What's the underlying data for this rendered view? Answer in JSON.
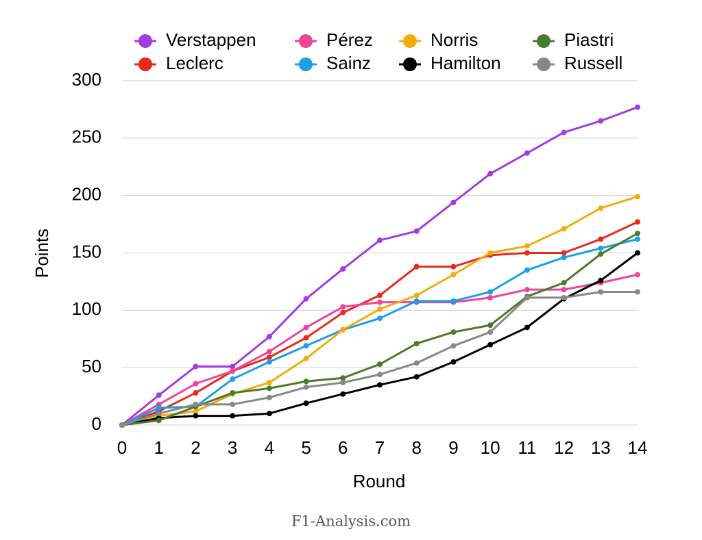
{
  "chart_data": {
    "type": "line",
    "x_label": "Round",
    "y_label": "Points",
    "footer": "F1-Analysis.com",
    "x": [
      0,
      1,
      2,
      3,
      4,
      5,
      6,
      7,
      8,
      9,
      10,
      11,
      12,
      13,
      14
    ],
    "xlim": [
      0,
      14
    ],
    "xticks": [
      0,
      1,
      2,
      3,
      4,
      5,
      6,
      7,
      8,
      9,
      10,
      11,
      12,
      13,
      14
    ],
    "ylim": [
      0,
      300
    ],
    "yticks": [
      0,
      50,
      100,
      150,
      200,
      250,
      300
    ],
    "grid": true,
    "legend": "top",
    "series": [
      {
        "name": "Verstappen",
        "color": "#a33be0",
        "values": [
          0,
          26,
          51,
          51,
          77,
          110,
          136,
          161,
          169,
          194,
          219,
          237,
          255,
          265,
          277
        ]
      },
      {
        "name": "Leclerc",
        "color": "#e8291c",
        "values": [
          0,
          12,
          28,
          47,
          59,
          76,
          98,
          113,
          138,
          138,
          148,
          150,
          150,
          162,
          177
        ]
      },
      {
        "name": "Pérez",
        "color": "#f0439c",
        "values": [
          0,
          18,
          36,
          47,
          64,
          85,
          103,
          107,
          107,
          107,
          111,
          118,
          118,
          124,
          131
        ]
      },
      {
        "name": "Sainz",
        "color": "#1a9fe8",
        "values": [
          0,
          15,
          16,
          40,
          55,
          69,
          83,
          93,
          108,
          108,
          116,
          135,
          146,
          154,
          162
        ]
      },
      {
        "name": "Norris",
        "color": "#f5ab0c",
        "values": [
          0,
          8,
          12,
          27,
          37,
          58,
          83,
          101,
          113,
          131,
          150,
          156,
          171,
          189,
          199
        ]
      },
      {
        "name": "Hamilton",
        "color": "#000000",
        "values": [
          0,
          6,
          8,
          8,
          10,
          19,
          27,
          35,
          42,
          55,
          70,
          85,
          110,
          126,
          150
        ]
      },
      {
        "name": "Piastri",
        "color": "#4a7a2a",
        "values": [
          0,
          4,
          16,
          28,
          32,
          38,
          41,
          53,
          71,
          81,
          87,
          112,
          124,
          149,
          167
        ]
      },
      {
        "name": "Russell",
        "color": "#888888",
        "values": [
          0,
          10,
          18,
          18,
          24,
          33,
          37,
          44,
          54,
          69,
          81,
          111,
          111,
          116,
          116
        ]
      }
    ]
  }
}
